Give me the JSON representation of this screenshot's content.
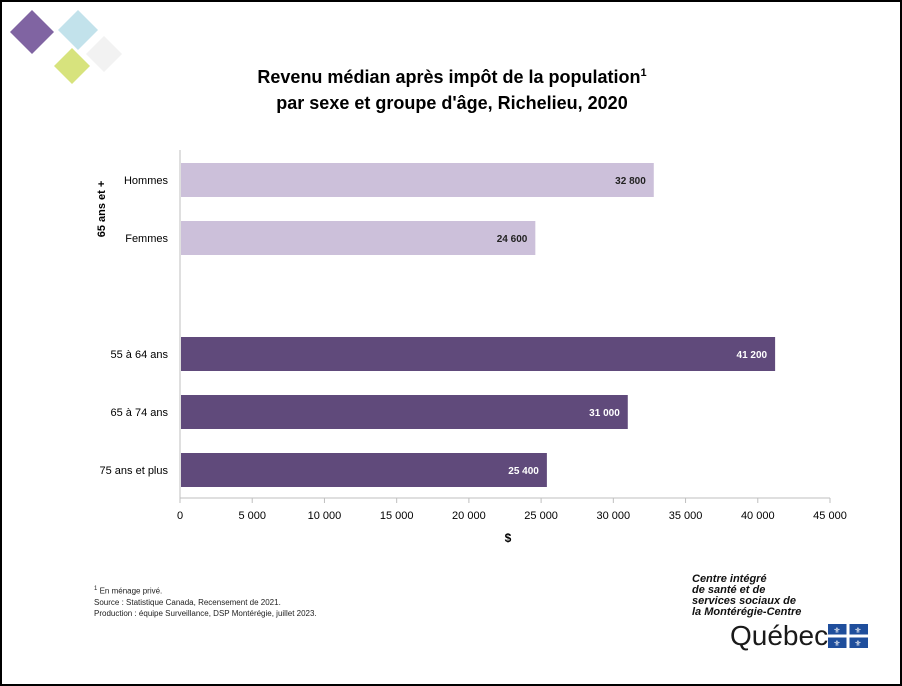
{
  "title_line1": "Revenu médian après impôt de la population",
  "title_sup": "1",
  "title_line2": "par sexe et groupe d'âge, Richelieu, 2020",
  "chart_data": {
    "type": "bar",
    "orientation": "horizontal",
    "title": "Revenu médian après impôt de la population¹ par sexe et groupe d'âge, Richelieu, 2020",
    "xlabel": "$",
    "xlim": [
      0,
      45000
    ],
    "xticks": [
      0,
      5000,
      10000,
      15000,
      20000,
      25000,
      30000,
      35000,
      40000,
      45000
    ],
    "xtick_labels": [
      "0",
      "5 000",
      "10 000",
      "15 000",
      "20 000",
      "25 000",
      "30 000",
      "35 000",
      "40 000",
      "45 000"
    ],
    "group_label": "65 ans et +",
    "grid": false,
    "bars": [
      {
        "category": "Hommes",
        "value": 32800,
        "label": "32 800",
        "color": "#ccc0da",
        "group": "65 ans et +"
      },
      {
        "category": "Femmes",
        "value": 24600,
        "label": "24 600",
        "color": "#ccc0da",
        "group": "65 ans et +"
      },
      {
        "category": "55 à 64 ans",
        "value": 41200,
        "label": "41 200",
        "color": "#604a7b"
      },
      {
        "category": "65 à 74 ans",
        "value": 31000,
        "label": "31 000",
        "color": "#604a7b"
      },
      {
        "category": "75 ans et plus",
        "value": 25400,
        "label": "25 400",
        "color": "#604a7b"
      }
    ]
  },
  "notes": {
    "footnote_sup": "1",
    "footnote": "En ménage privé.",
    "source": "Source : Statistique Canada, Recensement de 2021.",
    "production": "Production : équipe Surveillance, DSP Montérégie, juillet 2023."
  },
  "logo": {
    "line1": "Centre intégré",
    "line2": "de santé et de",
    "line3": "services sociaux de",
    "line4": "la Montérégie-Centre",
    "quebec": "Québec"
  },
  "colors": {
    "light_bar": "#ccc0da",
    "dark_bar": "#604a7b",
    "deco_purple": "#8064a2",
    "deco_blue": "#b7dde8",
    "deco_yellow": "#d7e37d"
  }
}
